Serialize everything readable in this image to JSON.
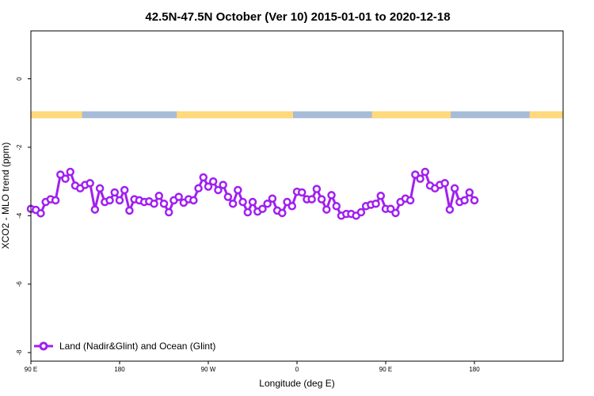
{
  "chart_data": {
    "type": "line",
    "title": "42.5N-47.5N October (Ver 10)   2015-01-01 to 2020-12-18",
    "xlabel": "Longitude (deg E)",
    "ylabel": "XCO2 - MLO trend (ppm)",
    "xlim": [
      90,
      630
    ],
    "ylim": [
      -8.25,
      1.4
    ],
    "x_ticks": [
      {
        "value": 90,
        "label": "90 E"
      },
      {
        "value": 180,
        "label": "180"
      },
      {
        "value": 270,
        "label": "90 W"
      },
      {
        "value": 360,
        "label": "0"
      },
      {
        "value": 450,
        "label": "90 E"
      },
      {
        "value": 540,
        "label": "180"
      }
    ],
    "y_ticks": [
      {
        "value": 0,
        "label": "0"
      },
      {
        "value": -2,
        "label": "-2"
      },
      {
        "value": -4,
        "label": "-4"
      },
      {
        "value": -6,
        "label": "-6"
      },
      {
        "value": -8,
        "label": "-8"
      }
    ],
    "legend": {
      "position": "bottom-left"
    },
    "colors": {
      "series": "#a020f0",
      "land": "#ffd97a",
      "ocean": "#a6bcd8"
    },
    "surface_band": {
      "y_range": [
        -1.15,
        -0.95
      ],
      "land_intervals": [
        [
          90,
          142
        ],
        [
          238,
          356
        ],
        [
          436,
          516
        ],
        [
          596,
          630
        ]
      ]
    },
    "series": [
      {
        "name": "Land (Nadir&Glint) and Ocean (Glint)",
        "x": [
          90,
          95,
          100,
          105,
          110,
          115,
          120,
          125,
          130,
          135,
          140,
          145,
          150,
          155,
          160,
          165,
          170,
          175,
          180,
          185,
          190,
          195,
          200,
          205,
          210,
          215,
          220,
          225,
          230,
          235,
          240,
          245,
          250,
          255,
          260,
          265,
          270,
          275,
          280,
          285,
          290,
          295,
          300,
          305,
          310,
          315,
          320,
          325,
          330,
          335,
          340,
          345,
          350,
          355,
          360,
          365,
          370,
          375,
          380,
          385,
          390,
          395,
          400,
          405,
          410,
          415,
          420,
          425,
          430,
          435,
          440,
          445,
          450,
          455,
          460,
          465,
          470,
          475,
          480,
          485,
          490,
          495,
          500,
          505,
          510,
          515,
          520,
          525,
          530,
          535,
          540
        ],
        "values": [
          -3.8,
          -3.83,
          -3.93,
          -3.6,
          -3.52,
          -3.55,
          -2.8,
          -2.92,
          -2.72,
          -3.12,
          -3.2,
          -3.1,
          -3.05,
          -3.82,
          -3.2,
          -3.6,
          -3.55,
          -3.32,
          -3.55,
          -3.25,
          -3.85,
          -3.52,
          -3.55,
          -3.6,
          -3.58,
          -3.65,
          -3.42,
          -3.65,
          -3.9,
          -3.55,
          -3.45,
          -3.62,
          -3.52,
          -3.55,
          -3.2,
          -2.88,
          -3.15,
          -3.0,
          -3.25,
          -3.1,
          -3.45,
          -3.65,
          -3.25,
          -3.6,
          -3.9,
          -3.6,
          -3.88,
          -3.8,
          -3.65,
          -3.5,
          -3.85,
          -3.92,
          -3.6,
          -3.72,
          -3.3,
          -3.32,
          -3.52,
          -3.52,
          -3.22,
          -3.52,
          -3.82,
          -3.4,
          -3.72,
          -4.0,
          -3.95,
          -3.95,
          -4.0,
          -3.9,
          -3.72,
          -3.68,
          -3.65,
          -3.42,
          -3.8,
          -3.8,
          -3.92,
          -3.6,
          -3.5,
          -3.55,
          -2.8,
          -2.92,
          -2.72,
          -3.12,
          -3.2,
          -3.1,
          -3.05,
          -3.82,
          -3.2,
          -3.6,
          -3.55,
          -3.32,
          -3.55
        ]
      }
    ]
  }
}
